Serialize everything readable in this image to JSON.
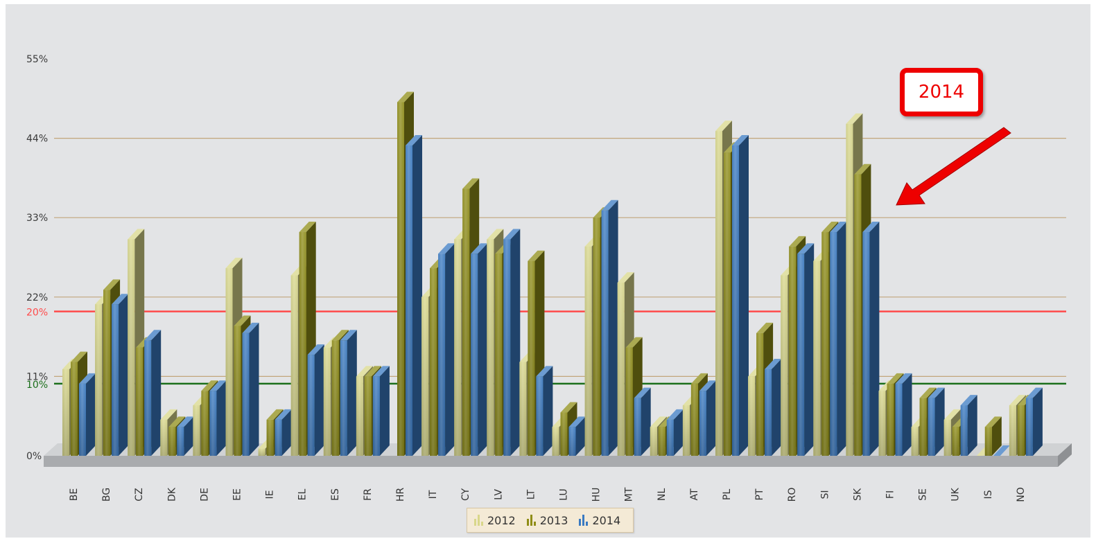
{
  "chart_data": {
    "type": "bar",
    "y_ticks": [
      {
        "value": 0,
        "label": "0%"
      },
      {
        "value": 11,
        "label": "11%"
      },
      {
        "value": 22,
        "label": "22%"
      },
      {
        "value": 33,
        "label": "33%"
      },
      {
        "value": 44,
        "label": "44%"
      },
      {
        "value": 55,
        "label": "55%"
      }
    ],
    "ylim": [
      0,
      55
    ],
    "reference_lines": [
      {
        "value": 20,
        "label": "20%",
        "color": "#ff4a4a"
      },
      {
        "value": 10,
        "label": "10%",
        "color": "#1a6e1a"
      }
    ],
    "categories": [
      "BE",
      "BG",
      "CZ",
      "DK",
      "DE",
      "EE",
      "IE",
      "EL",
      "ES",
      "FR",
      "HR",
      "IT",
      "CY",
      "LV",
      "LT",
      "LU",
      "HU",
      "MT",
      "NL",
      "AT",
      "PL",
      "PT",
      "RO",
      "SI",
      "SK",
      "FI",
      "SE",
      "UK",
      "IS",
      "NO"
    ],
    "series": [
      {
        "name": "2012",
        "color": "#d8d78a",
        "values": [
          12,
          21,
          30,
          5,
          7,
          26,
          1,
          25,
          15,
          11,
          null,
          22,
          30,
          30,
          13,
          4,
          29,
          24,
          4,
          7,
          45,
          11,
          25,
          27,
          46,
          9,
          4,
          5,
          0,
          7
        ]
      },
      {
        "name": "2013",
        "color": "#8f8d17",
        "values": [
          13,
          23,
          15,
          4,
          9,
          18,
          5,
          31,
          16,
          11,
          49,
          26,
          37,
          28,
          27,
          6,
          33,
          15,
          4,
          10,
          42,
          17,
          29,
          31,
          39,
          10,
          8,
          4,
          4,
          7
        ]
      },
      {
        "name": "2014",
        "color": "#3a7ac2",
        "values": [
          10,
          21,
          16,
          4,
          9,
          17,
          5,
          14,
          16,
          11,
          43,
          28,
          28,
          30,
          11,
          4,
          34,
          8,
          5,
          9,
          43,
          12,
          28,
          31,
          31,
          10,
          8,
          7,
          0,
          8
        ]
      }
    ],
    "legend_position": "bottom-center",
    "annotation": {
      "text": "2014"
    },
    "grid": true
  }
}
